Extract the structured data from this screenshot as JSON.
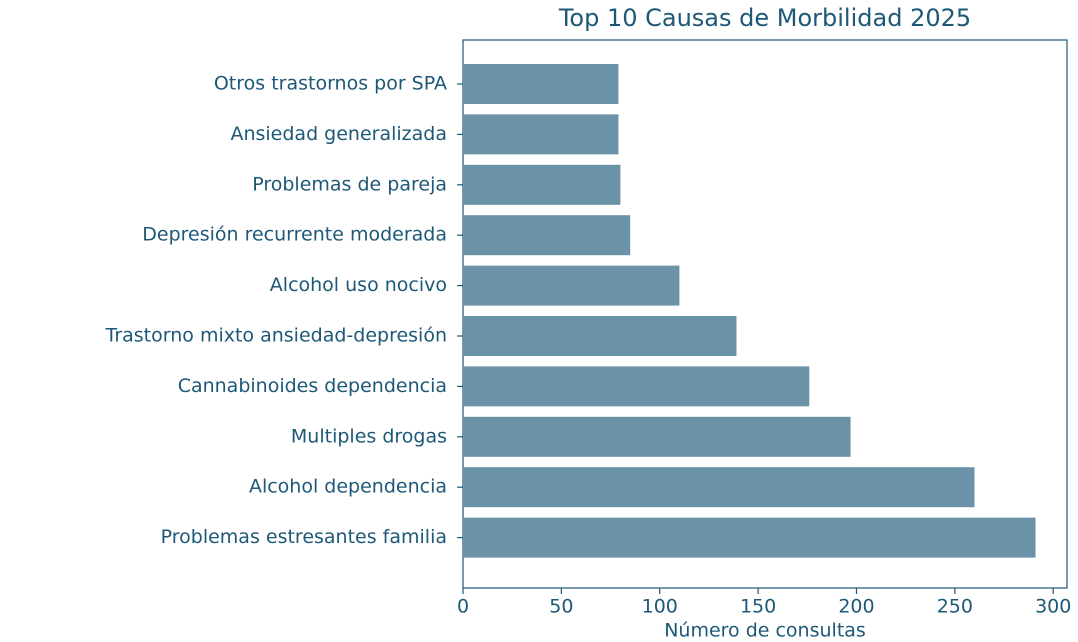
{
  "chart_data": {
    "type": "barh",
    "title": "Top 10 Causas de Morbilidad 2025",
    "x_label": "Número de consultas",
    "categories": [
      "Otros trastornos por SPA",
      "Ansiedad generalizada",
      "Problemas de pareja",
      "Depresión recurrente moderada",
      "Alcohol uso nocivo",
      "Trastorno mixto ansiedad-depresión",
      "Cannabinoides dependencia",
      "Multiples drogas",
      "Alcohol dependencia",
      "Problemas estresantes familia"
    ],
    "values": [
      79,
      79,
      80,
      85,
      110,
      139,
      176,
      197,
      260,
      291
    ],
    "color": "#6a93a8",
    "xlim": [
      0,
      307
    ],
    "xticks": [
      0,
      50,
      100,
      150,
      200,
      250,
      300
    ],
    "grid": false
  }
}
